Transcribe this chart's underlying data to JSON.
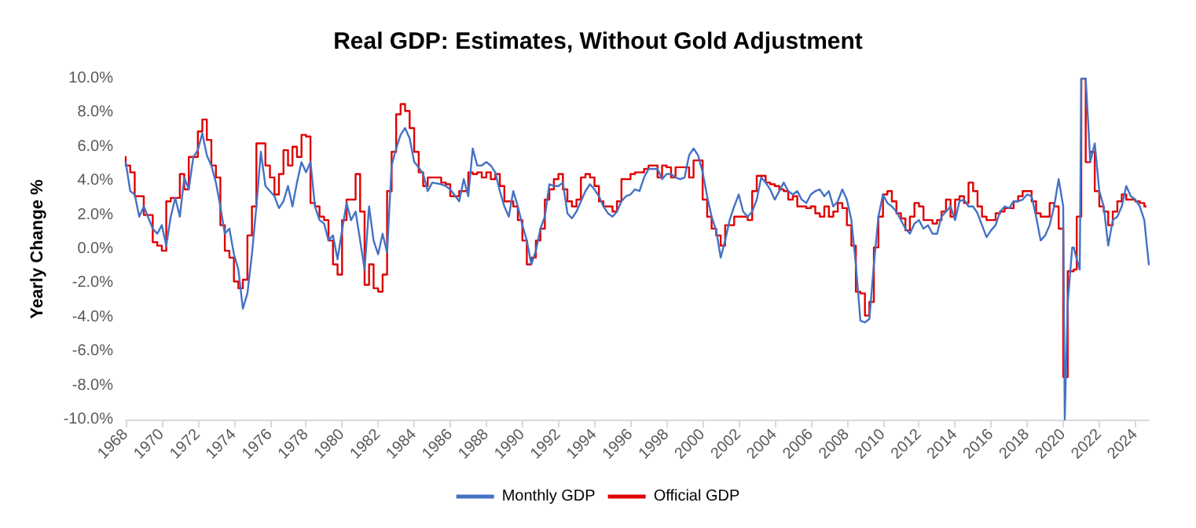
{
  "chart_data": {
    "type": "line",
    "title": "Real GDP: Estimates, Without Gold Adjustment",
    "ylabel": "Yearly Change %",
    "xlim": [
      "1968-01",
      "2024-10"
    ],
    "ylim": [
      -10,
      10
    ],
    "xticks": [
      "1968",
      "1970",
      "1972",
      "1974",
      "1976",
      "1978",
      "1980",
      "1982",
      "1984",
      "1986",
      "1988",
      "1990",
      "1992",
      "1994",
      "1996",
      "1998",
      "2000",
      "2002",
      "2004",
      "2006",
      "2008",
      "2010",
      "2012",
      "2014",
      "2016",
      "2018",
      "2020",
      "2022",
      "2024"
    ],
    "yticks": [
      {
        "value": -10,
        "label": "-10.0%"
      },
      {
        "value": -8,
        "label": "-8.0%"
      },
      {
        "value": -6,
        "label": "-6.0%"
      },
      {
        "value": -4,
        "label": "-4.0%"
      },
      {
        "value": -2,
        "label": "-2.0%"
      },
      {
        "value": 0,
        "label": "0.0%"
      },
      {
        "value": 2,
        "label": "2.0%"
      },
      {
        "value": 4,
        "label": "4.0%"
      },
      {
        "value": 6,
        "label": "6.0%"
      },
      {
        "value": 8,
        "label": "8.0%"
      },
      {
        "value": 10,
        "label": "10.0%"
      }
    ],
    "grid": false,
    "legend": "bottom",
    "marker": "none",
    "line_style": "solid",
    "series": [
      {
        "name": "Monthly GDP",
        "color": "#4472c4",
        "x": [
          "1968-01",
          "1968-04",
          "1968-07",
          "1968-10",
          "1969-01",
          "1969-07",
          "1969-10",
          "1970-01",
          "1970-04",
          "1970-07",
          "1970-10",
          "1971-01",
          "1971-04",
          "1971-07",
          "1971-10",
          "1972-01",
          "1972-04",
          "1972-07",
          "1972-10",
          "1973-01",
          "1973-04",
          "1973-07",
          "1973-10",
          "1974-01",
          "1974-04",
          "1974-07",
          "1974-10",
          "1975-01",
          "1975-04",
          "1975-07",
          "1975-10",
          "1976-01",
          "1976-04",
          "1976-07",
          "1976-10",
          "1977-01",
          "1977-04",
          "1977-07",
          "1977-10",
          "1978-01",
          "1978-04",
          "1978-07",
          "1978-10",
          "1979-01",
          "1979-04",
          "1979-07",
          "1979-10",
          "1980-01",
          "1980-04",
          "1980-07",
          "1980-10",
          "1981-01",
          "1981-04",
          "1981-07",
          "1981-10",
          "1982-01",
          "1982-04",
          "1982-07",
          "1982-10",
          "1983-01",
          "1983-04",
          "1983-07",
          "1983-10",
          "1984-01",
          "1984-04",
          "1984-07",
          "1984-10",
          "1985-01",
          "1985-07",
          "1985-10",
          "1986-01",
          "1986-07",
          "1986-10",
          "1987-01",
          "1987-04",
          "1987-07",
          "1987-10",
          "1988-01",
          "1988-04",
          "1988-07",
          "1988-10",
          "1989-01",
          "1989-04",
          "1989-07",
          "1989-10",
          "1990-01",
          "1990-04",
          "1990-07",
          "1990-10",
          "1991-01",
          "1991-04",
          "1991-07",
          "1991-10",
          "1992-01",
          "1992-04",
          "1992-07",
          "1992-10",
          "1993-01",
          "1993-04",
          "1993-07",
          "1993-10",
          "1994-01",
          "1994-04",
          "1994-07",
          "1994-10",
          "1995-01",
          "1995-04",
          "1995-07",
          "1995-10",
          "1996-01",
          "1996-04",
          "1996-07",
          "1996-10",
          "1997-01",
          "1997-07",
          "1997-10",
          "1998-01",
          "1998-04",
          "1998-07",
          "1998-10",
          "1999-01",
          "1999-04",
          "1999-07",
          "1999-10",
          "2000-01",
          "2000-04",
          "2000-07",
          "2000-10",
          "2001-01",
          "2001-04",
          "2001-07",
          "2001-10",
          "2002-01",
          "2002-04",
          "2002-07",
          "2002-10",
          "2003-01",
          "2003-04",
          "2003-07",
          "2003-10",
          "2004-01",
          "2004-04",
          "2004-07",
          "2004-10",
          "2005-01",
          "2005-04",
          "2005-07",
          "2005-10",
          "2006-01",
          "2006-04",
          "2006-07",
          "2006-10",
          "2007-01",
          "2007-04",
          "2007-07",
          "2007-10",
          "2008-01",
          "2008-04",
          "2008-07",
          "2008-10",
          "2009-01",
          "2009-04",
          "2009-07",
          "2009-10",
          "2010-01",
          "2010-04",
          "2010-07",
          "2010-10",
          "2011-01",
          "2011-04",
          "2011-07",
          "2011-10",
          "2012-01",
          "2012-04",
          "2012-07",
          "2012-10",
          "2013-01",
          "2013-04",
          "2013-07",
          "2013-10",
          "2014-01",
          "2014-04",
          "2014-07",
          "2014-10",
          "2015-01",
          "2015-04",
          "2015-07",
          "2015-10",
          "2016-01",
          "2016-04",
          "2016-07",
          "2016-10",
          "2017-01",
          "2017-04",
          "2017-07",
          "2017-10",
          "2018-01",
          "2018-04",
          "2018-07",
          "2018-10",
          "2019-01",
          "2019-04",
          "2019-07",
          "2019-10",
          "2020-01",
          "2020-02",
          "2020-04",
          "2020-07",
          "2020-08",
          "2020-10",
          "2020-12",
          "2021-01",
          "2021-04",
          "2021-06",
          "2021-07",
          "2021-10",
          "2022-01",
          "2022-04",
          "2022-07",
          "2022-10",
          "2023-01",
          "2023-04",
          "2023-07",
          "2023-10",
          "2024-01",
          "2024-04",
          "2024-07",
          "2024-08",
          "2024-10"
        ],
        "values": [
          5.1,
          3.4,
          3.2,
          1.9,
          2.5,
          1.2,
          0.9,
          1.4,
          0.2,
          1.9,
          3.0,
          1.9,
          4.2,
          3.5,
          5.4,
          5.8,
          6.8,
          5.5,
          4.9,
          3.9,
          2.5,
          0.9,
          1.2,
          -0.3,
          -1.2,
          -3.5,
          -2.6,
          -0.3,
          2.5,
          5.7,
          3.7,
          3.4,
          3.1,
          2.4,
          2.8,
          3.7,
          2.5,
          3.9,
          5.1,
          4.5,
          5.1,
          2.5,
          1.7,
          1.5,
          0.5,
          0.8,
          -0.6,
          1.1,
          2.7,
          1.7,
          2.2,
          0.5,
          -1.2,
          2.5,
          0.5,
          -0.3,
          0.9,
          -0.2,
          4.9,
          5.9,
          6.7,
          7.1,
          6.5,
          5.1,
          4.8,
          4.4,
          3.4,
          3.9,
          3.8,
          3.7,
          3.5,
          2.8,
          4.1,
          3.1,
          5.9,
          4.9,
          4.9,
          5.1,
          4.9,
          4.5,
          3.4,
          2.5,
          1.9,
          3.4,
          2.5,
          1.4,
          0.5,
          -0.9,
          -0.1,
          1.2,
          1.9,
          3.8,
          3.7,
          3.7,
          3.9,
          2.1,
          1.8,
          2.2,
          2.8,
          3.4,
          3.8,
          3.5,
          3.1,
          2.5,
          2.1,
          1.9,
          2.2,
          2.8,
          3.1,
          3.2,
          3.5,
          3.4,
          4.2,
          4.7,
          4.7,
          4.1,
          4.4,
          4.4,
          4.2,
          4.1,
          4.2,
          5.5,
          5.9,
          5.5,
          4.5,
          3.1,
          1.9,
          1.1,
          -0.5,
          0.5,
          1.7,
          2.5,
          3.2,
          2.2,
          1.9,
          2.2,
          2.9,
          4.2,
          3.9,
          3.5,
          2.9,
          3.4,
          3.9,
          3.4,
          3.2,
          3.4,
          2.9,
          2.7,
          3.2,
          3.4,
          3.5,
          3.1,
          3.4,
          2.5,
          2.8,
          3.5,
          2.9,
          1.7,
          -0.9,
          -4.2,
          -4.3,
          -4.1,
          -0.9,
          1.9,
          3.2,
          2.7,
          2.5,
          2.2,
          1.7,
          1.2,
          0.9,
          1.5,
          1.7,
          1.2,
          1.4,
          0.9,
          0.9,
          1.9,
          2.2,
          2.5,
          1.7,
          2.8,
          2.9,
          2.5,
          2.5,
          2.1,
          1.4,
          0.7,
          1.1,
          1.4,
          2.2,
          2.5,
          2.4,
          2.8,
          2.8,
          2.9,
          3.2,
          3.1,
          1.9,
          0.5,
          0.8,
          1.4,
          2.5,
          4.1,
          2.5,
          -10,
          -3.2,
          0.1,
          0.1,
          -0.6,
          -1.2,
          10,
          10,
          6.8,
          5.1,
          6.2,
          3.4,
          2.5,
          0.2,
          1.7,
          1.9,
          2.5,
          3.7,
          3.1,
          2.9,
          2.5,
          1.7,
          0.8,
          -0.9
        ]
      },
      {
        "name": "Official GDP",
        "color": "#e00000",
        "type": "step",
        "x": [
          "1968-01",
          "1968-04",
          "1968-07",
          "1968-10",
          "1969-01",
          "1969-07",
          "1969-10",
          "1970-01",
          "1970-04",
          "1970-07",
          "1970-10",
          "1971-01",
          "1971-04",
          "1971-07",
          "1971-10",
          "1972-01",
          "1972-04",
          "1972-07",
          "1972-10",
          "1973-01",
          "1973-04",
          "1973-07",
          "1973-10",
          "1974-01",
          "1974-04",
          "1974-07",
          "1974-10",
          "1975-01",
          "1975-04",
          "1975-07",
          "1975-10",
          "1976-01",
          "1976-04",
          "1976-07",
          "1976-10",
          "1977-01",
          "1977-04",
          "1977-07",
          "1977-10",
          "1978-01",
          "1978-04",
          "1978-07",
          "1978-10",
          "1979-01",
          "1979-04",
          "1979-07",
          "1979-10",
          "1980-01",
          "1980-04",
          "1980-07",
          "1980-10",
          "1981-01",
          "1981-04",
          "1981-07",
          "1981-10",
          "1982-01",
          "1982-04",
          "1982-07",
          "1982-10",
          "1983-01",
          "1983-04",
          "1983-07",
          "1983-10",
          "1984-01",
          "1984-04",
          "1984-07",
          "1984-10",
          "1985-01",
          "1985-07",
          "1985-10",
          "1986-01",
          "1986-07",
          "1986-10",
          "1987-01",
          "1987-04",
          "1987-07",
          "1987-10",
          "1988-01",
          "1988-04",
          "1988-07",
          "1988-10",
          "1989-01",
          "1989-04",
          "1989-07",
          "1989-10",
          "1990-01",
          "1990-04",
          "1990-07",
          "1990-10",
          "1991-01",
          "1991-04",
          "1991-07",
          "1991-10",
          "1992-01",
          "1992-04",
          "1992-07",
          "1992-10",
          "1993-01",
          "1993-04",
          "1993-07",
          "1993-10",
          "1994-01",
          "1994-04",
          "1994-07",
          "1994-10",
          "1995-01",
          "1995-04",
          "1995-07",
          "1995-10",
          "1996-01",
          "1996-04",
          "1996-07",
          "1996-10",
          "1997-01",
          "1997-07",
          "1997-10",
          "1998-01",
          "1998-04",
          "1998-07",
          "1998-10",
          "1999-01",
          "1999-04",
          "1999-07",
          "1999-10",
          "2000-01",
          "2000-04",
          "2000-07",
          "2000-10",
          "2001-01",
          "2001-04",
          "2001-07",
          "2001-10",
          "2002-01",
          "2002-04",
          "2002-07",
          "2002-10",
          "2003-01",
          "2003-04",
          "2003-07",
          "2003-10",
          "2004-01",
          "2004-04",
          "2004-07",
          "2004-10",
          "2005-01",
          "2005-04",
          "2005-07",
          "2005-10",
          "2006-01",
          "2006-04",
          "2006-07",
          "2006-10",
          "2007-01",
          "2007-04",
          "2007-07",
          "2007-10",
          "2008-01",
          "2008-04",
          "2008-07",
          "2008-10",
          "2009-01",
          "2009-04",
          "2009-07",
          "2009-10",
          "2010-01",
          "2010-04",
          "2010-07",
          "2010-10",
          "2011-01",
          "2011-04",
          "2011-07",
          "2011-10",
          "2012-01",
          "2012-04",
          "2012-07",
          "2012-10",
          "2013-01",
          "2013-04",
          "2013-07",
          "2013-10",
          "2014-01",
          "2014-04",
          "2014-07",
          "2014-10",
          "2015-01",
          "2015-04",
          "2015-07",
          "2015-10",
          "2016-01",
          "2016-04",
          "2016-07",
          "2016-10",
          "2017-01",
          "2017-04",
          "2017-07",
          "2017-10",
          "2018-01",
          "2018-04",
          "2018-07",
          "2018-10",
          "2019-01",
          "2019-04",
          "2019-07",
          "2019-10",
          "2020-01",
          "2020-04",
          "2020-08",
          "2020-10",
          "2021-01",
          "2021-04",
          "2021-07",
          "2021-10",
          "2022-01",
          "2022-04",
          "2022-07",
          "2022-10",
          "2023-01",
          "2023-04",
          "2023-07",
          "2023-10",
          "2024-01",
          "2024-04",
          "2024-07",
          "2024-08"
        ],
        "values": [
          5.4,
          4.9,
          4.5,
          3.1,
          3.1,
          2.0,
          0.4,
          0.2,
          -0.1,
          2.8,
          3.0,
          3.0,
          4.4,
          3.5,
          5.4,
          5.4,
          6.9,
          7.6,
          6.4,
          4.9,
          4.2,
          1.4,
          -0.1,
          -0.5,
          -1.9,
          -2.3,
          -1.8,
          0.8,
          2.5,
          6.2,
          6.2,
          4.9,
          4.2,
          3.2,
          4.4,
          5.8,
          4.9,
          6.0,
          5.4,
          6.7,
          6.6,
          2.7,
          2.5,
          1.9,
          1.7,
          0.5,
          -0.9,
          -1.5,
          1.7,
          2.9,
          2.9,
          4.4,
          2.2,
          -2.1,
          -0.9,
          -2.3,
          -2.5,
          -1.5,
          3.4,
          5.7,
          7.9,
          8.5,
          8.1,
          7.1,
          5.7,
          4.5,
          3.7,
          4.2,
          4.2,
          3.9,
          3.8,
          3.1,
          3.4,
          3.4,
          4.5,
          4.4,
          4.5,
          4.2,
          4.5,
          4.1,
          4.4,
          3.7,
          2.8,
          2.8,
          2.5,
          1.7,
          0.5,
          -0.9,
          -0.5,
          0.5,
          1.2,
          2.9,
          3.5,
          4.1,
          4.4,
          3.5,
          2.8,
          2.5,
          2.9,
          4.2,
          4.4,
          4.2,
          3.7,
          2.8,
          2.5,
          2.5,
          2.2,
          2.8,
          4.1,
          4.1,
          4.4,
          4.5,
          4.5,
          4.7,
          4.9,
          4.2,
          4.9,
          4.8,
          4.2,
          4.8,
          4.8,
          4.8,
          4.2,
          5.2,
          5.2,
          2.9,
          1.9,
          1.2,
          0.8,
          0.2,
          1.4,
          1.4,
          1.9,
          1.9,
          1.9,
          1.7,
          3.4,
          4.3,
          4.3,
          3.9,
          3.8,
          3.7,
          3.5,
          3.4,
          2.9,
          3.1,
          2.5,
          2.5,
          2.4,
          2.5,
          2.1,
          1.9,
          2.5,
          1.9,
          2.2,
          2.7,
          2.4,
          1.4,
          0.2,
          -2.5,
          -2.6,
          -3.9,
          -3.1,
          0.1,
          1.9,
          3.2,
          3.4,
          2.8,
          2.1,
          1.8,
          1.1,
          1.9,
          2.7,
          2.5,
          1.7,
          1.7,
          1.5,
          1.7,
          2.2,
          2.9,
          1.9,
          2.9,
          3.1,
          2.7,
          3.9,
          3.4,
          2.5,
          1.9,
          1.7,
          1.7,
          2.1,
          2.2,
          2.4,
          2.4,
          2.8,
          3.1,
          3.4,
          3.4,
          2.8,
          2.1,
          1.9,
          1.9,
          2.7,
          2.5,
          1.2,
          -7.5,
          -1.3,
          -1.2,
          1.9,
          10,
          5.1,
          5.7,
          3.4,
          2.5,
          2.2,
          1.4,
          2.2,
          2.8,
          3.2,
          2.9,
          2.9,
          2.8,
          2.7,
          2.5
        ]
      }
    ]
  }
}
